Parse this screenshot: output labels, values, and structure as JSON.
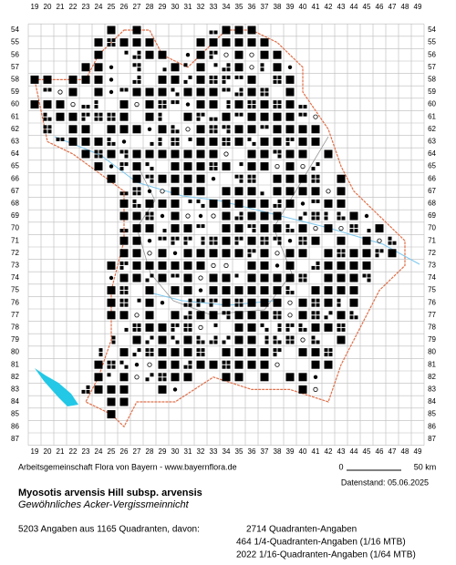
{
  "grid": {
    "columns": [
      19,
      20,
      21,
      22,
      23,
      24,
      25,
      26,
      27,
      28,
      29,
      30,
      31,
      32,
      33,
      34,
      35,
      36,
      37,
      38,
      39,
      40,
      41,
      42,
      43,
      44,
      45,
      46,
      47,
      48,
      49
    ],
    "rows": [
      54,
      55,
      56,
      57,
      58,
      59,
      60,
      61,
      62,
      63,
      64,
      65,
      66,
      67,
      68,
      69,
      70,
      71,
      72,
      73,
      74,
      75,
      76,
      77,
      78,
      79,
      80,
      81,
      82,
      83,
      84,
      85,
      86,
      87
    ]
  },
  "footer": {
    "credit": "Arbeitsgemeinschaft Flora von Bayern - www.bayernflora.de",
    "scale_start": "0",
    "scale_end": "50 km",
    "date": "Datenstand: 05.06.2025",
    "title": "Myosotis arvensis Hill subsp. arvensis",
    "subtitle": "Gewöhnliches Acker-Vergissmeinnicht",
    "summary": "5203 Angaben aus 1165 Quadranten, davon:",
    "breakdown": [
      "2714 Quadranten-Angaben",
      "464 1/4-Quadranten-Angaben (1/16 MTB)",
      "2022 1/16-Quadranten-Angaben (1/64 MTB)"
    ]
  }
}
